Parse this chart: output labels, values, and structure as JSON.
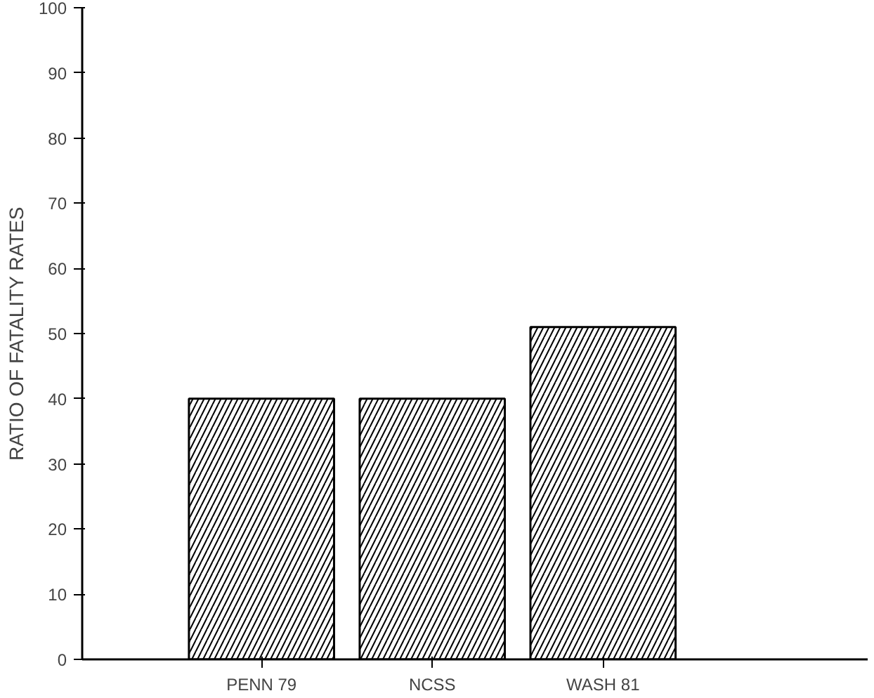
{
  "chart_data": {
    "type": "bar",
    "ylabel": "RATIO OF FATALITY RATES",
    "categories": [
      "PENN 79",
      "NCSS",
      "WASH 81"
    ],
    "values": [
      40,
      40,
      51
    ],
    "color": "#000000",
    "ylim": [
      0,
      100
    ],
    "yticks": [
      0,
      10,
      20,
      30,
      40,
      50,
      60,
      70,
      80,
      90,
      100
    ],
    "grid": false
  }
}
